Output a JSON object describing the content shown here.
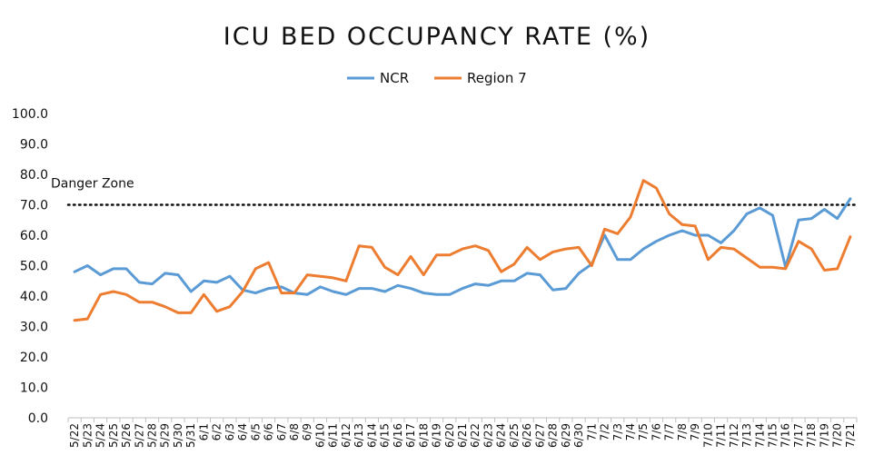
{
  "chart_data": {
    "type": "line",
    "title": "ICU BED OCCUPANCY RATE (%)",
    "xlabel": "",
    "ylabel": "",
    "ylim": [
      0,
      100
    ],
    "yticks": [
      "0.0",
      "10.0",
      "20.0",
      "30.0",
      "40.0",
      "50.0",
      "60.0",
      "70.0",
      "80.0",
      "90.0",
      "100.0"
    ],
    "grid": false,
    "legend_position": "top",
    "categories": [
      "5/22",
      "5/23",
      "5/24",
      "5/25",
      "5/26",
      "5/27",
      "5/28",
      "5/29",
      "5/30",
      "5/31",
      "6/1",
      "6/2",
      "6/3",
      "6/4",
      "6/5",
      "6/6",
      "6/7",
      "6/8",
      "6/9",
      "6/10",
      "6/11",
      "6/12",
      "6/13",
      "6/14",
      "6/15",
      "6/16",
      "6/17",
      "6/18",
      "6/19",
      "6/20",
      "6/21",
      "6/22",
      "6/23",
      "6/24",
      "6/25",
      "6/26",
      "6/27",
      "6/28",
      "6/29",
      "6/30",
      "7/1",
      "7/2",
      "7/3",
      "7/4",
      "7/5",
      "7/6",
      "7/7",
      "7/8",
      "7/9",
      "7/10",
      "7/11",
      "7/12",
      "7/13",
      "7/14",
      "7/15",
      "7/16",
      "7/17",
      "7/18",
      "7/19",
      "7/20",
      "7/21"
    ],
    "series": [
      {
        "name": "NCR",
        "color": "#5B9BD5",
        "values": [
          48,
          50,
          47,
          49,
          49,
          44.5,
          44,
          47.5,
          47,
          41.5,
          45,
          44.5,
          46.5,
          42,
          41,
          42.5,
          43,
          41,
          40.5,
          43,
          41.5,
          40.5,
          42.5,
          42.5,
          41.5,
          43.5,
          42.5,
          41,
          40.5,
          40.5,
          42.5,
          44,
          43.5,
          45,
          45,
          47.5,
          47,
          42,
          42.5,
          47.5,
          50.5,
          60,
          52,
          52,
          55.5,
          58,
          60,
          61.5,
          60,
          60,
          57.5,
          61.5,
          67,
          69,
          66.5,
          49.5,
          65,
          65.5,
          68.5,
          65.5,
          72
        ]
      },
      {
        "name": "Region 7",
        "color": "#ED7D31",
        "values": [
          32,
          32.5,
          40.5,
          41.5,
          40.5,
          38,
          38,
          36.5,
          34.5,
          34.5,
          40.5,
          35,
          36.5,
          41.5,
          49,
          51,
          41,
          41,
          47,
          46.5,
          46,
          45,
          56.5,
          56,
          49.5,
          47,
          53,
          47,
          53.5,
          53.5,
          55.5,
          56.5,
          55,
          48,
          50.5,
          56,
          52,
          54.5,
          55.5,
          56,
          50,
          62,
          60.5,
          66,
          78,
          75.5,
          67,
          63.5,
          63,
          52,
          56,
          55.5,
          52.5,
          49.5,
          49.5,
          49,
          58,
          55.5,
          48.5,
          49,
          59.5
        ]
      }
    ],
    "annotations": [
      {
        "text": "Danger Zone",
        "y": 70,
        "style": "dotted-line"
      }
    ]
  }
}
